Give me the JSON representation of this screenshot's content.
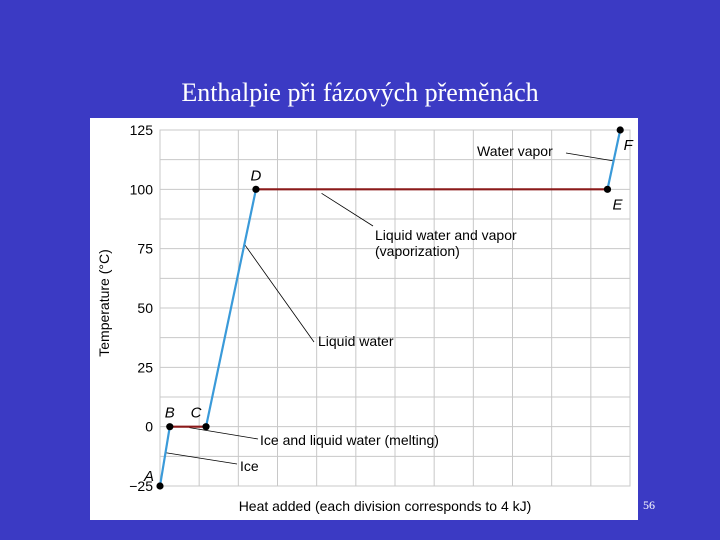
{
  "slide": {
    "title": "Enthalpie při fázových přeměnách",
    "page_number": "56"
  },
  "colors": {
    "background": "#3b3ac4",
    "panel": "#ffffff",
    "grid": "#c8c8c8",
    "heating_curve": "#3a9ad9",
    "phase_change_segment": "#8b1a1a",
    "point": "#000000"
  },
  "chart_data": {
    "type": "line",
    "title": "",
    "xlabel": "Heat added (each division corresponds to 4 kJ)",
    "ylabel": "Temperature (°C)",
    "ylim": [
      -25,
      125
    ],
    "xlim": [
      0,
      48
    ],
    "grid": true,
    "yticks": [
      125,
      100,
      75,
      50,
      25,
      0,
      -25
    ],
    "ytick_labels": [
      "125",
      "100",
      "75",
      "50",
      "25",
      "0",
      "−25"
    ],
    "series": [
      {
        "points": [
          {
            "label": "A",
            "x": 0,
            "y": -25
          },
          {
            "label": "B",
            "x": 1,
            "y": 0
          },
          {
            "label": "C",
            "x": 4.7,
            "y": 0
          },
          {
            "label": "D",
            "x": 9.8,
            "y": 100
          },
          {
            "label": "E",
            "x": 45.7,
            "y": 100
          },
          {
            "label": "F",
            "x": 47,
            "y": 125
          }
        ]
      }
    ],
    "annotations": [
      {
        "text": "Water vapor",
        "segment": "E-F"
      },
      {
        "text": "Liquid water and vapor\n(vaporization)",
        "segment": "D-E"
      },
      {
        "text": "Liquid water",
        "segment": "C-D"
      },
      {
        "text": "Ice and liquid water (melting)",
        "segment": "B-C"
      },
      {
        "text": "Ice",
        "segment": "A-B"
      }
    ]
  }
}
